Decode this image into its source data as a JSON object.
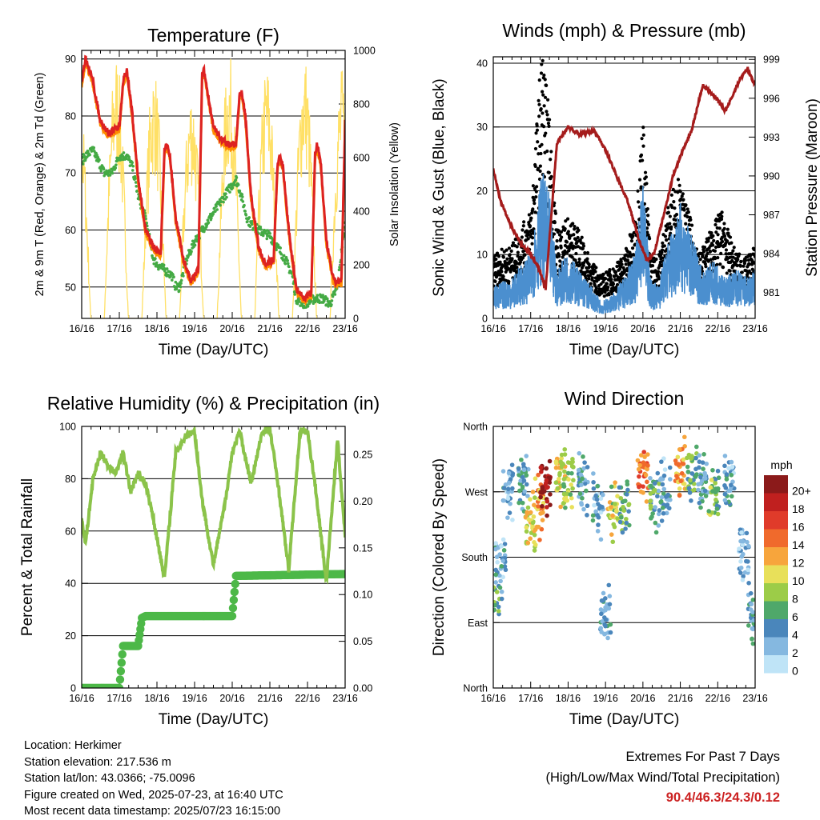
{
  "chart_data": [
    {
      "type": "line",
      "title": "Temperature (F)",
      "xlabel": "Time (Day/UTC)",
      "ylabel": "2m & 9m T (Red, Orange) & 2m Td (Green)",
      "y2label": "Solar Insolation (Yellow)",
      "x_ticks": [
        "16/16",
        "17/16",
        "18/16",
        "19/16",
        "20/16",
        "21/16",
        "22/16",
        "23/16"
      ],
      "ylim": [
        44.5,
        91.5
      ],
      "y_ticks": [
        50,
        60,
        70,
        80,
        90
      ],
      "y2lim": [
        0,
        1000
      ],
      "y2_ticks": [
        0,
        200,
        400,
        600,
        800,
        1000
      ],
      "grid": "horizontal",
      "colors": {
        "t2m": "#dd2222",
        "t9m": "#ff8c00",
        "td2m": "#44aa44",
        "solar": "#ffe066"
      },
      "series": [
        {
          "name": "2m T (Red)",
          "x": [
            0,
            0.1,
            0.3,
            0.5,
            0.7,
            1.0,
            1.1,
            1.2,
            1.35,
            1.5,
            1.7,
            1.9,
            2.1,
            2.2,
            2.25,
            2.35,
            2.5,
            2.7,
            2.9,
            3.1,
            3.2,
            3.25,
            3.35,
            3.5,
            3.7,
            3.9,
            4.1,
            4.2,
            4.25,
            4.35,
            4.5,
            4.7,
            4.9,
            5.1,
            5.2,
            5.25,
            5.35,
            5.5,
            5.7,
            5.9,
            6.1,
            6.2,
            6.25,
            6.35,
            6.5,
            6.7,
            6.9,
            7.0
          ],
          "values": [
            86,
            90,
            86,
            79,
            77,
            78,
            86,
            88,
            80,
            69,
            60,
            57,
            56,
            74,
            75,
            73,
            62,
            55,
            51,
            53,
            87,
            88,
            84,
            78,
            76,
            75,
            75,
            84,
            84,
            80,
            66,
            57,
            54,
            55,
            71,
            73,
            71,
            60,
            50,
            48,
            49,
            73,
            75,
            72,
            58,
            51,
            51,
            79
          ]
        },
        {
          "name": "Td (Green)",
          "x": [
            0,
            0.1,
            0.3,
            0.6,
            0.8,
            1.0,
            1.2,
            1.35,
            1.5,
            1.7,
            1.9,
            2.0,
            2.2,
            2.4,
            2.5,
            2.6,
            2.8,
            3.0,
            3.1,
            3.3,
            3.5,
            3.7,
            3.9,
            4.1,
            4.2,
            4.4,
            4.5,
            4.7,
            5.0,
            5.2,
            5.4,
            5.6,
            5.7,
            5.9,
            6.2,
            6.4,
            6.6,
            6.8,
            6.9,
            7.0
          ],
          "values": [
            72,
            73,
            74,
            70,
            70,
            73,
            73,
            71,
            66,
            62,
            55,
            54,
            53,
            52,
            50,
            50,
            55,
            58,
            59,
            61,
            63,
            65,
            67,
            69,
            67,
            62,
            61,
            60,
            59,
            57,
            55,
            52,
            48,
            47,
            48,
            48,
            47,
            50,
            56,
            61
          ]
        }
      ]
    },
    {
      "type": "scatter",
      "title": "Winds (mph) & Pressure (mb)",
      "xlabel": "Time (Day/UTC)",
      "ylabel": "Sonic Wind & Gust (Blue, Black)",
      "y2label": "Station Pressure (Maroon)",
      "x_ticks": [
        "16/16",
        "17/16",
        "18/16",
        "19/16",
        "20/16",
        "21/16",
        "22/16",
        "23/16"
      ],
      "ylim": [
        0,
        41
      ],
      "y_ticks": [
        0,
        10,
        20,
        30,
        40
      ],
      "y2lim": [
        979.0,
        999.2
      ],
      "y2_ticks": [
        981,
        984,
        987,
        990,
        993,
        996,
        999
      ],
      "grid": "horizontal",
      "colors": {
        "wind": "#4b8fcf",
        "gust": "#000000",
        "pressure": "#a51c1c"
      },
      "series": [
        {
          "name": "Station Pressure (Maroon)",
          "x": [
            0,
            0.2,
            0.5,
            0.8,
            1.0,
            1.2,
            1.4,
            1.7,
            2.0,
            2.3,
            2.7,
            3.0,
            3.3,
            3.6,
            3.9,
            4.1,
            4.3,
            4.6,
            4.8,
            5.0,
            5.3,
            5.6,
            5.9,
            6.2,
            6.4,
            6.6,
            6.8,
            6.9,
            7.0
          ],
          "values": [
            990.5,
            988,
            986,
            984.5,
            984,
            983,
            981.3,
            992.5,
            993.8,
            993.2,
            993.5,
            992,
            990,
            988,
            985,
            983.5,
            984,
            987.5,
            990,
            991.5,
            993.5,
            997,
            996.2,
            995,
            996.2,
            997.5,
            998.3,
            997.6,
            997
          ]
        },
        {
          "name": "Sonic Wind (Blue)",
          "x": [
            0,
            0.5,
            1.0,
            1.3,
            1.5,
            1.7,
            2.0,
            2.3,
            2.6,
            2.9,
            3.2,
            3.5,
            3.8,
            4.0,
            4.2,
            4.4,
            4.7,
            5.0,
            5.3,
            5.6,
            5.9,
            6.2,
            6.5,
            6.8,
            7.0
          ],
          "values": [
            4,
            5,
            8,
            18,
            15,
            6,
            8,
            6,
            4,
            2,
            3,
            5,
            8,
            17,
            5,
            4,
            10,
            14,
            10,
            6,
            7,
            5,
            6,
            5,
            6
          ]
        },
        {
          "name": "Gust (Black)",
          "x": [
            0,
            0.5,
            1.0,
            1.2,
            1.3,
            1.5,
            1.7,
            2.0,
            2.3,
            2.6,
            2.9,
            3.2,
            3.5,
            3.8,
            4.0,
            4.2,
            4.4,
            4.7,
            4.9,
            5.2,
            5.5,
            5.8,
            6.1,
            6.4,
            6.7,
            7.0
          ],
          "values": [
            9,
            10,
            15,
            30,
            38,
            28,
            12,
            14,
            12,
            8,
            6,
            7,
            9,
            14,
            28,
            9,
            8,
            16,
            20,
            15,
            9,
            12,
            15,
            10,
            8,
            10
          ]
        }
      ]
    },
    {
      "type": "line",
      "title": "Relative Humidity (%) & Precipitation (in)",
      "xlabel": "Time (Day/UTC)",
      "ylabel": "Percent & Total Rainfall",
      "x_ticks": [
        "16/16",
        "17/16",
        "18/16",
        "19/16",
        "20/16",
        "21/16",
        "22/16",
        "23/16"
      ],
      "ylim": [
        0,
        100
      ],
      "y_ticks": [
        0,
        20,
        40,
        60,
        80,
        100
      ],
      "y2lim": [
        0,
        0.28
      ],
      "y2_ticks": [
        0.0,
        0.05,
        0.1,
        0.15,
        0.2,
        0.25
      ],
      "grid": "horizontal",
      "colors": {
        "rh": "#8bc34a",
        "precip": "#4db848"
      },
      "series": [
        {
          "name": "Relative Humidity",
          "x": [
            0,
            0.1,
            0.3,
            0.5,
            0.7,
            0.9,
            1.1,
            1.3,
            1.5,
            1.7,
            1.9,
            2.2,
            2.5,
            2.8,
            3.0,
            3.2,
            3.5,
            3.8,
            4.0,
            4.2,
            4.5,
            4.8,
            5.0,
            5.2,
            5.5,
            5.8,
            6.0,
            6.2,
            6.5,
            6.8,
            7.0
          ],
          "values": [
            65,
            55,
            80,
            90,
            85,
            82,
            90,
            75,
            82,
            78,
            65,
            42,
            90,
            97,
            98,
            72,
            47,
            70,
            90,
            98,
            78,
            98,
            99,
            80,
            45,
            98,
            98,
            78,
            41,
            95,
            58
          ]
        },
        {
          "name": "Total Rainfall",
          "x": [
            0,
            1.0,
            1.1,
            1.5,
            1.6,
            1.7,
            4.0,
            4.1,
            7.0
          ],
          "values": [
            0.0,
            0.0,
            0.045,
            0.045,
            0.075,
            0.077,
            0.077,
            0.12,
            0.122
          ]
        }
      ]
    },
    {
      "type": "scatter",
      "title": "Wind Direction",
      "xlabel": "Time (Day/UTC)",
      "ylabel": "Direction (Colored By Speed)",
      "x_ticks": [
        "16/16",
        "17/16",
        "18/16",
        "19/16",
        "20/16",
        "21/16",
        "22/16",
        "23/16"
      ],
      "y_ticks": [
        "North",
        "East",
        "South",
        "West",
        "North"
      ],
      "y_tick_degrees": [
        0,
        90,
        180,
        270,
        360
      ],
      "ylim": [
        0,
        360
      ],
      "grid": "horizontal",
      "legend": "right",
      "colorbar": {
        "title": "mph",
        "labels": [
          "20+",
          "18",
          "16",
          "14",
          "12",
          "10",
          "8",
          "6",
          "4",
          "2",
          "0"
        ],
        "colors": [
          "#8b1a1a",
          "#c0201f",
          "#e03b2a",
          "#f06a2c",
          "#f7a53c",
          "#e8e05a",
          "#9ccc48",
          "#4fa86a",
          "#4a86bb",
          "#85b8e0",
          "#bfe4f7"
        ]
      },
      "clusters": [
        {
          "x": 0.05,
          "dir": 120,
          "speed": 6
        },
        {
          "x": 0.2,
          "dir": 170,
          "speed": 3
        },
        {
          "x": 0.4,
          "dir": 275,
          "speed": 3
        },
        {
          "x": 0.8,
          "dir": 285,
          "speed": 4
        },
        {
          "x": 1.0,
          "dir": 220,
          "speed": 10
        },
        {
          "x": 1.2,
          "dir": 250,
          "speed": 12
        },
        {
          "x": 1.4,
          "dir": 275,
          "speed": 20
        },
        {
          "x": 1.8,
          "dir": 295,
          "speed": 10
        },
        {
          "x": 2.0,
          "dir": 285,
          "speed": 8
        },
        {
          "x": 2.4,
          "dir": 280,
          "speed": 4
        },
        {
          "x": 2.8,
          "dir": 250,
          "speed": 3
        },
        {
          "x": 3.0,
          "dir": 100,
          "speed": 4
        },
        {
          "x": 3.2,
          "dir": 245,
          "speed": 9
        },
        {
          "x": 3.5,
          "dir": 250,
          "speed": 6
        },
        {
          "x": 4.0,
          "dir": 290,
          "speed": 14
        },
        {
          "x": 4.3,
          "dir": 260,
          "speed": 5
        },
        {
          "x": 4.6,
          "dir": 270,
          "speed": 3
        },
        {
          "x": 5.0,
          "dir": 300,
          "speed": 12
        },
        {
          "x": 5.3,
          "dir": 295,
          "speed": 6
        },
        {
          "x": 5.6,
          "dir": 280,
          "speed": 4
        },
        {
          "x": 5.9,
          "dir": 265,
          "speed": 7
        },
        {
          "x": 6.3,
          "dir": 285,
          "speed": 3
        },
        {
          "x": 6.7,
          "dir": 180,
          "speed": 2
        },
        {
          "x": 6.95,
          "dir": 100,
          "speed": 4
        }
      ]
    }
  ],
  "footer": {
    "location": "Location: Herkimer",
    "elevation": "Station elevation: 217.536 m",
    "latlon": "Station lat/lon: 43.0366; -75.0096",
    "created": "Figure created on Wed, 2025-07-23, at 16:40 UTC",
    "timestamp": "Most recent data timestamp: 2025/07/23 16:15:00"
  },
  "extremes": {
    "heading": "Extremes For Past 7 Days",
    "subheading": "(High/Low/Max Wind/Total Precipitation)",
    "values": "90.4/46.3/24.3/0.12"
  }
}
